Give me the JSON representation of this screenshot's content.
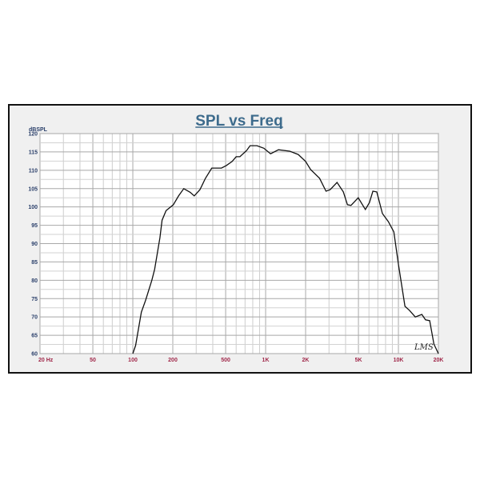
{
  "chart_data": {
    "type": "line",
    "title": "SPL vs Freq",
    "ylabel": "dBSPL",
    "xlabel": "",
    "xscale": "log",
    "xlim": [
      20,
      20000
    ],
    "ylim": [
      60,
      120
    ],
    "grid": true,
    "y_ticks": [
      60,
      65,
      70,
      75,
      80,
      85,
      90,
      95,
      100,
      105,
      110,
      115,
      120
    ],
    "x_ticks": [
      {
        "value": 20,
        "label": "20  Hz"
      },
      {
        "value": 50,
        "label": "50"
      },
      {
        "value": 100,
        "label": "100"
      },
      {
        "value": 200,
        "label": "200"
      },
      {
        "value": 500,
        "label": "500"
      },
      {
        "value": 1000,
        "label": "1K"
      },
      {
        "value": 2000,
        "label": "2K"
      },
      {
        "value": 5000,
        "label": "5K"
      },
      {
        "value": 10000,
        "label": "10K"
      },
      {
        "value": 20000,
        "label": "20K"
      }
    ],
    "series": [
      {
        "color": "#111111",
        "x": [
          100,
          105,
          116,
          125,
          139,
          146,
          160,
          166,
          178,
          202,
          221,
          242,
          270,
          290,
          320,
          352,
          393,
          465,
          506,
          560,
          600,
          640,
          720,
          764,
          860,
          970,
          1090,
          1250,
          1520,
          1760,
          2000,
          2180,
          2550,
          2850,
          3060,
          3450,
          3850,
          4130,
          4390,
          4980,
          5640,
          6050,
          6420,
          6870,
          7570,
          8390,
          9240,
          10000,
          11200,
          12100,
          13400,
          15000,
          16000,
          17200,
          18500,
          20000
        ],
        "y": [
          60,
          62.2,
          71.3,
          74.6,
          80,
          83,
          91.6,
          96.4,
          99,
          100.6,
          103,
          105,
          104,
          103,
          104.7,
          107.8,
          110.6,
          110.6,
          111.3,
          112.4,
          113.7,
          113.7,
          115.4,
          116.7,
          116.7,
          116,
          114.5,
          115.6,
          115.2,
          114.3,
          112.4,
          110.2,
          107.8,
          104.3,
          104.7,
          106.7,
          104.1,
          100.6,
          100.4,
          102.5,
          99.3,
          101.2,
          104.3,
          104.1,
          98.2,
          96,
          93.2,
          84.4,
          72.9,
          71.8,
          70,
          70.7,
          69.2,
          69,
          62.6,
          60
        ]
      }
    ],
    "watermark": "LMS"
  }
}
